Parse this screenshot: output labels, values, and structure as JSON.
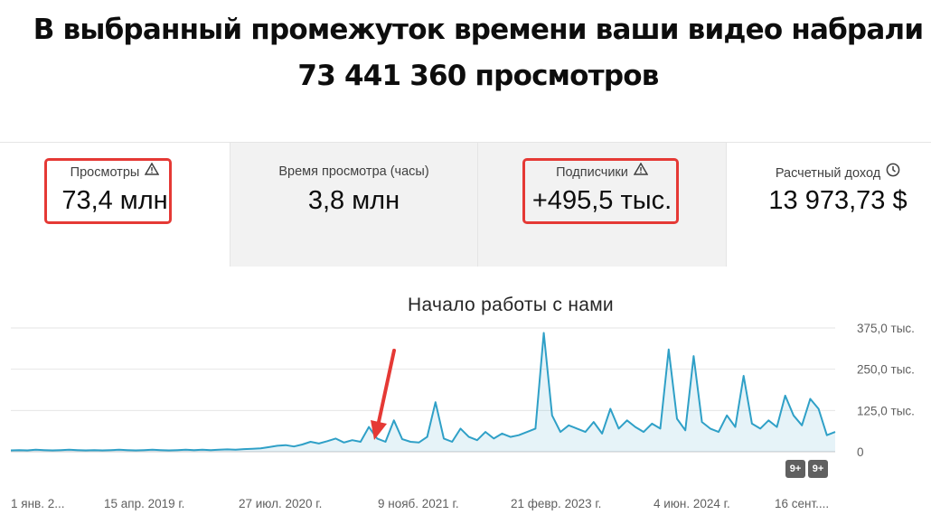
{
  "headline": {
    "line1": "В выбранный промежуток времени ваши видео набрали",
    "line2": "73 441 360 просмотров"
  },
  "metrics": [
    {
      "label": "Просмотры",
      "value": "73,4 млн",
      "icon": "warning-icon",
      "highlighted": true
    },
    {
      "label": "Время просмотра (часы)",
      "value": "3,8 млн"
    },
    {
      "label": "Подписчики",
      "value": "+495,5 тыс.",
      "icon": "warning-icon",
      "highlighted": true
    },
    {
      "label": "Расчетный доход",
      "value": "13 973,73 $",
      "icon": "clock-icon"
    }
  ],
  "annotation_color": "#e53935",
  "series_color": "#2fa0c7",
  "chart_data": {
    "type": "area",
    "title": "Начало работы с нами",
    "y_ticks": [
      "375,0 тыс.",
      "250,0 тыс.",
      "125,0 тыс.",
      "0"
    ],
    "ylim": [
      0,
      375000
    ],
    "x_tick_labels": [
      "1 янв. 2...",
      "15 апр. 2019 г.",
      "27 июл. 2020 г.",
      "9 нояб. 2021 г.",
      "21 февр. 2023 г.",
      "4 июн. 2024 г.",
      "16 сент...."
    ],
    "grid": true,
    "axis_side": "right",
    "badges": [
      "9+",
      "9+"
    ],
    "series": [
      {
        "values": [
          4000,
          5000,
          4000,
          6000,
          5000,
          4000,
          5000,
          6000,
          5000,
          4000,
          5000,
          4000,
          5000,
          6000,
          5000,
          4000,
          5000,
          6000,
          5000,
          4000,
          5000,
          6000,
          5000,
          6000,
          5000,
          6000,
          7000,
          6000,
          8000,
          9000,
          10000,
          14000,
          18000,
          20000,
          16000,
          22000,
          30000,
          25000,
          32000,
          40000,
          28000,
          35000,
          30000,
          75000,
          40000,
          30000,
          95000,
          38000,
          30000,
          28000,
          45000,
          150000,
          40000,
          30000,
          70000,
          45000,
          35000,
          60000,
          40000,
          55000,
          45000,
          50000,
          60000,
          70000,
          360000,
          110000,
          60000,
          80000,
          70000,
          60000,
          90000,
          55000,
          130000,
          70000,
          95000,
          75000,
          60000,
          85000,
          70000,
          310000,
          100000,
          65000,
          290000,
          90000,
          70000,
          60000,
          110000,
          75000,
          230000,
          85000,
          70000,
          95000,
          75000,
          170000,
          110000,
          80000,
          160000,
          130000,
          50000,
          60000
        ]
      }
    ]
  }
}
